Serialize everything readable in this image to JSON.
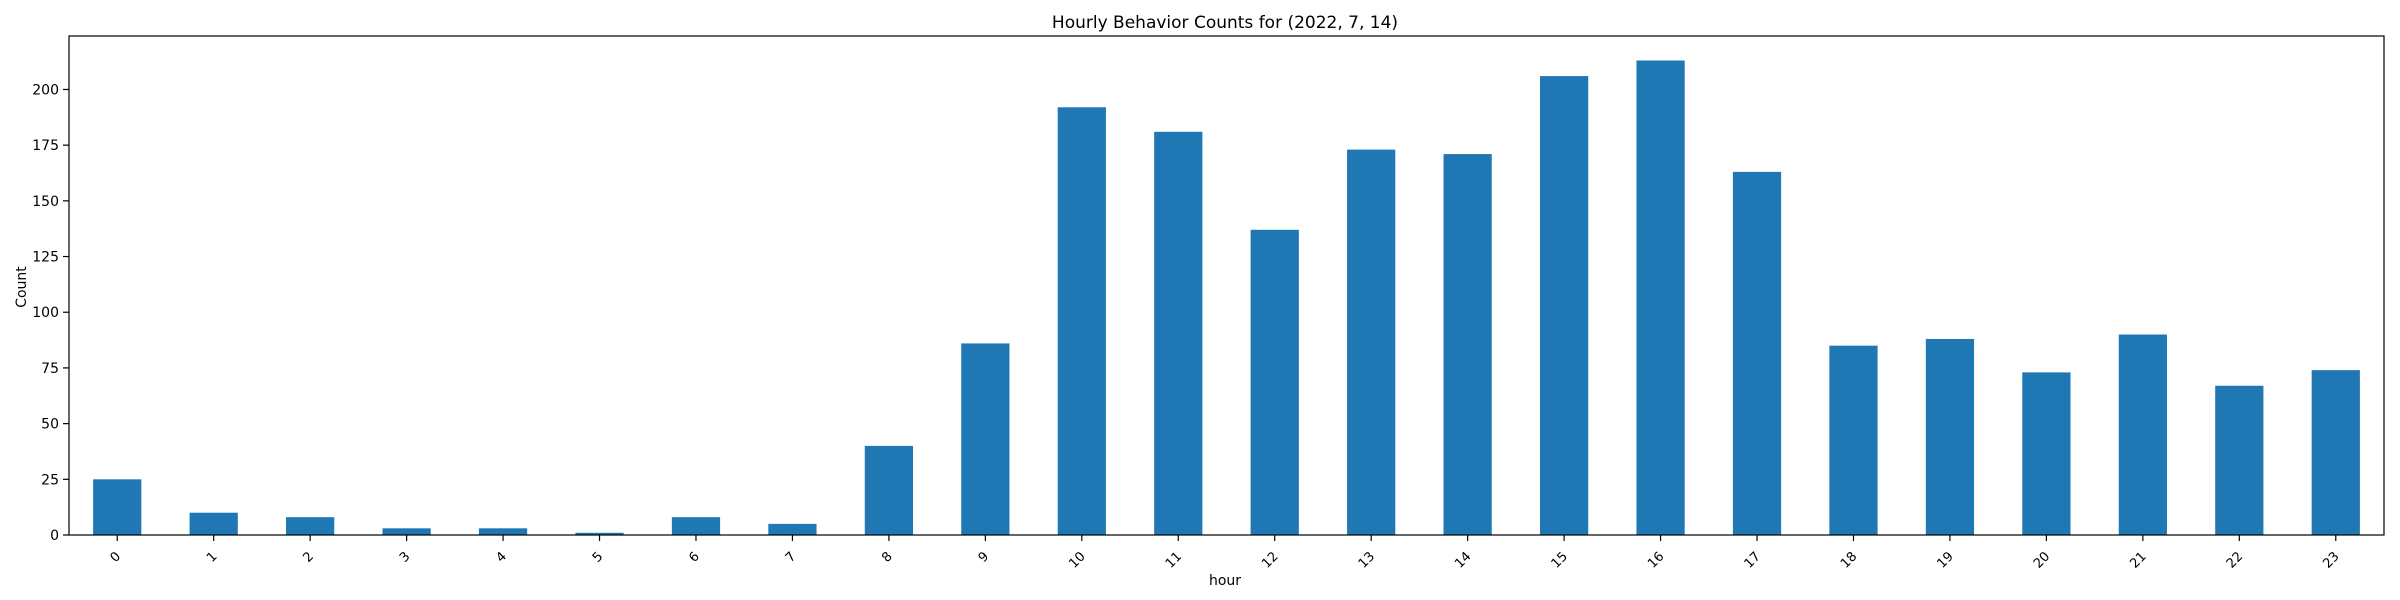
{
  "chart_data": {
    "type": "bar",
    "title": "Hourly Behavior Counts for (2022, 7, 14)",
    "xlabel": "hour",
    "ylabel": "Count",
    "categories": [
      "0",
      "1",
      "2",
      "3",
      "4",
      "5",
      "6",
      "7",
      "8",
      "9",
      "10",
      "11",
      "12",
      "13",
      "14",
      "15",
      "16",
      "17",
      "18",
      "19",
      "20",
      "21",
      "22",
      "23"
    ],
    "values": [
      25,
      10,
      8,
      3,
      3,
      1,
      8,
      5,
      40,
      86,
      192,
      181,
      137,
      173,
      171,
      206,
      213,
      163,
      85,
      88,
      73,
      90,
      67,
      74
    ],
    "ylim": [
      0,
      224
    ],
    "yticks": [
      0,
      25,
      50,
      75,
      100,
      125,
      150,
      175,
      200
    ],
    "xtick_rotation": 45,
    "grid": false,
    "bar_color": "#1f77b4"
  }
}
